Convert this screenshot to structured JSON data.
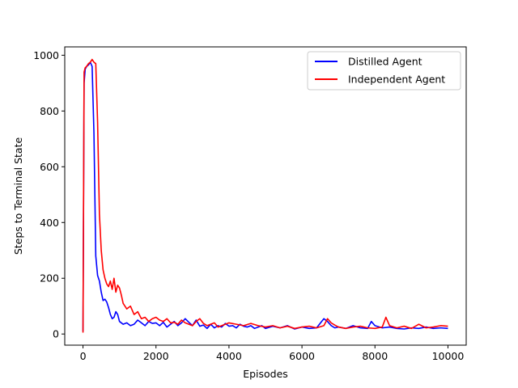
{
  "chart_data": {
    "type": "line",
    "title": "",
    "xlabel": "Episodes",
    "ylabel": "Steps to Terminal State",
    "xlim": [
      -500,
      10500
    ],
    "ylim": [
      -40,
      1030
    ],
    "xticks": [
      0,
      2000,
      4000,
      6000,
      8000,
      10000
    ],
    "xtick_labels": [
      "0",
      "2000",
      "4000",
      "6000",
      "8000",
      "10000"
    ],
    "yticks": [
      0,
      200,
      400,
      600,
      800,
      1000
    ],
    "ytick_labels": [
      "0",
      "200",
      "400",
      "600",
      "800",
      "1000"
    ],
    "grid": false,
    "legend_position": "upper right",
    "series": [
      {
        "name": "Distilled Agent",
        "color": "#0000ff",
        "x": [
          0,
          30,
          60,
          100,
          150,
          200,
          250,
          300,
          350,
          400,
          450,
          500,
          550,
          600,
          650,
          700,
          750,
          800,
          850,
          900,
          950,
          1000,
          1100,
          1200,
          1300,
          1400,
          1500,
          1600,
          1700,
          1800,
          1900,
          2000,
          2100,
          2200,
          2300,
          2400,
          2500,
          2600,
          2700,
          2800,
          2900,
          3000,
          3100,
          3200,
          3300,
          3400,
          3500,
          3600,
          3700,
          3800,
          3900,
          4000,
          4100,
          4200,
          4300,
          4400,
          4500,
          4600,
          4700,
          4800,
          4900,
          5000,
          5200,
          5400,
          5600,
          5800,
          6000,
          6200,
          6400,
          6600,
          6700,
          6800,
          6900,
          7000,
          7200,
          7400,
          7600,
          7800,
          7900,
          8000,
          8200,
          8400,
          8600,
          8800,
          9000,
          9200,
          9400,
          9600,
          9800,
          10000
        ],
        "y": [
          10,
          900,
          950,
          960,
          965,
          975,
          960,
          720,
          280,
          210,
          190,
          150,
          120,
          125,
          115,
          95,
          70,
          55,
          60,
          80,
          70,
          45,
          35,
          40,
          30,
          35,
          50,
          40,
          30,
          45,
          38,
          40,
          30,
          42,
          25,
          35,
          45,
          30,
          40,
          55,
          42,
          30,
          50,
          28,
          32,
          20,
          35,
          22,
          30,
          25,
          38,
          28,
          30,
          22,
          35,
          28,
          25,
          30,
          20,
          25,
          30,
          20,
          28,
          22,
          30,
          18,
          25,
          20,
          22,
          55,
          45,
          30,
          22,
          25,
          20,
          30,
          22,
          20,
          45,
          30,
          22,
          25,
          20,
          18,
          22,
          20,
          25,
          20,
          22,
          20
        ]
      },
      {
        "name": "Independent Agent",
        "color": "#ff0000",
        "x": [
          0,
          30,
          60,
          100,
          150,
          200,
          250,
          300,
          350,
          400,
          450,
          500,
          550,
          600,
          650,
          700,
          750,
          800,
          850,
          900,
          950,
          1000,
          1050,
          1100,
          1200,
          1300,
          1400,
          1500,
          1600,
          1700,
          1800,
          1900,
          2000,
          2100,
          2200,
          2300,
          2400,
          2500,
          2600,
          2700,
          2800,
          2900,
          3000,
          3100,
          3200,
          3300,
          3400,
          3500,
          3600,
          3700,
          3800,
          3900,
          4000,
          4200,
          4400,
          4600,
          4800,
          5000,
          5200,
          5400,
          5600,
          5800,
          6000,
          6200,
          6400,
          6600,
          6700,
          6800,
          6900,
          7000,
          7200,
          7400,
          7600,
          7800,
          8000,
          8200,
          8300,
          8400,
          8600,
          8800,
          9000,
          9200,
          9400,
          9600,
          9800,
          10000
        ],
        "y": [
          5,
          940,
          955,
          960,
          970,
          975,
          985,
          975,
          970,
          760,
          430,
          300,
          230,
          200,
          180,
          170,
          190,
          160,
          200,
          150,
          175,
          165,
          140,
          110,
          90,
          100,
          70,
          80,
          55,
          60,
          45,
          55,
          60,
          50,
          45,
          55,
          40,
          42,
          35,
          50,
          40,
          35,
          30,
          45,
          55,
          38,
          30,
          35,
          40,
          25,
          30,
          35,
          40,
          35,
          30,
          38,
          30,
          25,
          30,
          22,
          28,
          20,
          25,
          28,
          22,
          30,
          55,
          40,
          32,
          25,
          20,
          25,
          28,
          22,
          20,
          25,
          60,
          30,
          22,
          28,
          20,
          35,
          22,
          25,
          30,
          28
        ]
      }
    ]
  }
}
